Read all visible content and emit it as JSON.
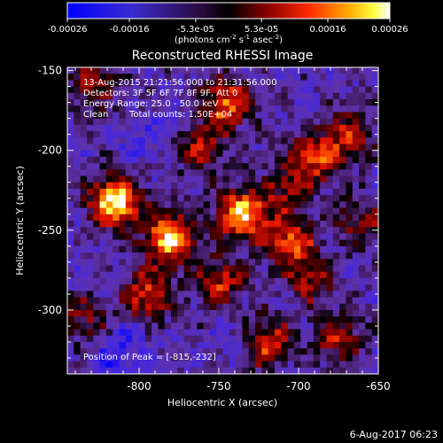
{
  "colorbar": {
    "tick_labels": [
      "-0.00026",
      "-0.00016",
      "-5.3e-05",
      "5.3e-05",
      "0.00016",
      "0.00026"
    ],
    "tick_values": [
      -0.00026,
      -0.00016,
      -5.3e-05,
      5.3e-05,
      0.00016,
      0.00026
    ],
    "range": [
      -0.00026,
      0.00026
    ],
    "unit_label": "(photons cm",
    "unit_exp1": "-2",
    "unit_mid": " s",
    "unit_exp2": "-1",
    "unit_mid2": " asec",
    "unit_exp3": "-2",
    "unit_end": ")"
  },
  "chart_data": {
    "type": "heatmap",
    "title": "Reconstructed RHESSI Image",
    "xlabel": "Heliocentric X (arcsec)",
    "ylabel": "Heliocentric Y (arcsec)",
    "xlim": [
      -845,
      -650
    ],
    "ylim": [
      -340,
      -148
    ],
    "x_ticks": [
      -800,
      -750,
      -700,
      -650
    ],
    "x_tick_labels": [
      "-800",
      "-750",
      "-700",
      "-650"
    ],
    "y_ticks": [
      -150,
      -200,
      -250,
      -300
    ],
    "y_tick_labels": [
      "-150",
      "-200",
      "-250",
      "-300"
    ],
    "colormap": "blue-purple-black-red-yellow-white",
    "hot_spots": [
      {
        "x": -815,
        "y": -232,
        "value": 0.00026
      },
      {
        "x": -780,
        "y": -255,
        "value": 0.00024
      },
      {
        "x": -735,
        "y": -240,
        "value": 0.00023
      },
      {
        "x": -705,
        "y": -258,
        "value": 0.00017
      },
      {
        "x": -795,
        "y": -290,
        "value": 0.00015
      },
      {
        "x": -750,
        "y": -283,
        "value": 0.00014
      },
      {
        "x": -762,
        "y": -198,
        "value": 0.00012
      },
      {
        "x": -745,
        "y": -171,
        "value": 0.00018
      },
      {
        "x": -690,
        "y": -205,
        "value": 0.00016
      },
      {
        "x": -668,
        "y": -190,
        "value": 0.00012
      },
      {
        "x": -720,
        "y": -320,
        "value": 0.00015
      },
      {
        "x": -675,
        "y": -318,
        "value": 0.00012
      },
      {
        "x": -830,
        "y": -160,
        "value": 0.00011
      },
      {
        "x": -692,
        "y": -282,
        "value": 0.0001
      },
      {
        "x": -835,
        "y": -305,
        "value": 9e-05
      },
      {
        "x": -660,
        "y": -245,
        "value": 0.0001
      },
      {
        "x": -708,
        "y": -225,
        "value": 9e-05
      }
    ],
    "cold_spots": [
      {
        "x": -808,
        "y": -320,
        "value": -0.00016
      },
      {
        "x": -818,
        "y": -335,
        "value": -0.00014
      },
      {
        "x": -780,
        "y": -183,
        "value": -0.00012
      },
      {
        "x": -740,
        "y": -320,
        "value": -0.00011
      },
      {
        "x": -800,
        "y": -198,
        "value": -9e-05
      }
    ]
  },
  "annotations": {
    "time_range": "13-Aug-2015 21:21:56.000 to 21:31:56.000",
    "detectors": "Detectors: 3F 5F 6F 7F 8F 9F, Att 0",
    "energy": "Energy Range: 25.0 - 50.0 keV",
    "method": "Clean",
    "counts": "Total counts: 1.50E+04",
    "peak": "Position of Peak = [-815,-232]"
  },
  "footer": {
    "date": "6-Aug-2017 06:23"
  }
}
